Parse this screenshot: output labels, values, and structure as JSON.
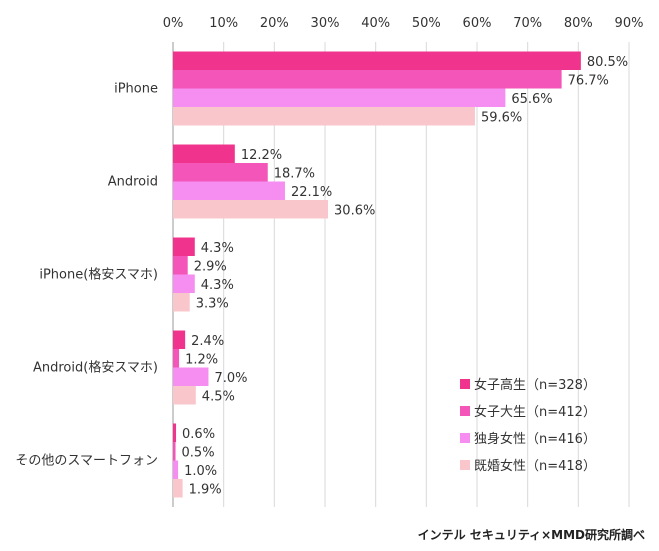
{
  "chart_data": {
    "type": "bar",
    "orientation": "horizontal",
    "categories": [
      "iPhone",
      "Android",
      "iPhone(格安スマホ)",
      "Android(格安スマホ)",
      "その他のスマートフォン"
    ],
    "series": [
      {
        "name": "女子高生（n=328）",
        "color": "#f0338c",
        "values": [
          80.5,
          12.2,
          4.3,
          2.4,
          0.6
        ],
        "labels": [
          "80.5%",
          "12.2%",
          "4.3%",
          "2.4%",
          "0.6%"
        ]
      },
      {
        "name": "女子大生（n=412）",
        "color": "#f355b8",
        "values": [
          76.7,
          18.7,
          2.9,
          1.2,
          0.5
        ],
        "labels": [
          "76.7%",
          "18.7%",
          "2.9%",
          "1.2%",
          "0.5%"
        ]
      },
      {
        "name": "独身女性（n=416）",
        "color": "#f68ef2",
        "values": [
          65.6,
          22.1,
          4.3,
          7.0,
          1.0
        ],
        "labels": [
          "65.6%",
          "22.1%",
          "4.3%",
          "7.0%",
          "1.0%"
        ]
      },
      {
        "name": "既婚女性（n=418）",
        "color": "#f9c7cb",
        "values": [
          59.6,
          30.6,
          3.3,
          4.5,
          1.9
        ],
        "labels": [
          "59.6%",
          "30.6%",
          "3.3%",
          "4.5%",
          "1.9%"
        ]
      }
    ],
    "xlim": [
      0,
      90
    ],
    "xticks": [
      "0%",
      "10%",
      "20%",
      "30%",
      "40%",
      "50%",
      "60%",
      "70%",
      "80%",
      "90%"
    ],
    "grid": true,
    "legend_position": "bottom-right",
    "title": "",
    "xlabel": "",
    "ylabel": ""
  },
  "credit": "インテル セキュリティ×MMD研究所調べ"
}
